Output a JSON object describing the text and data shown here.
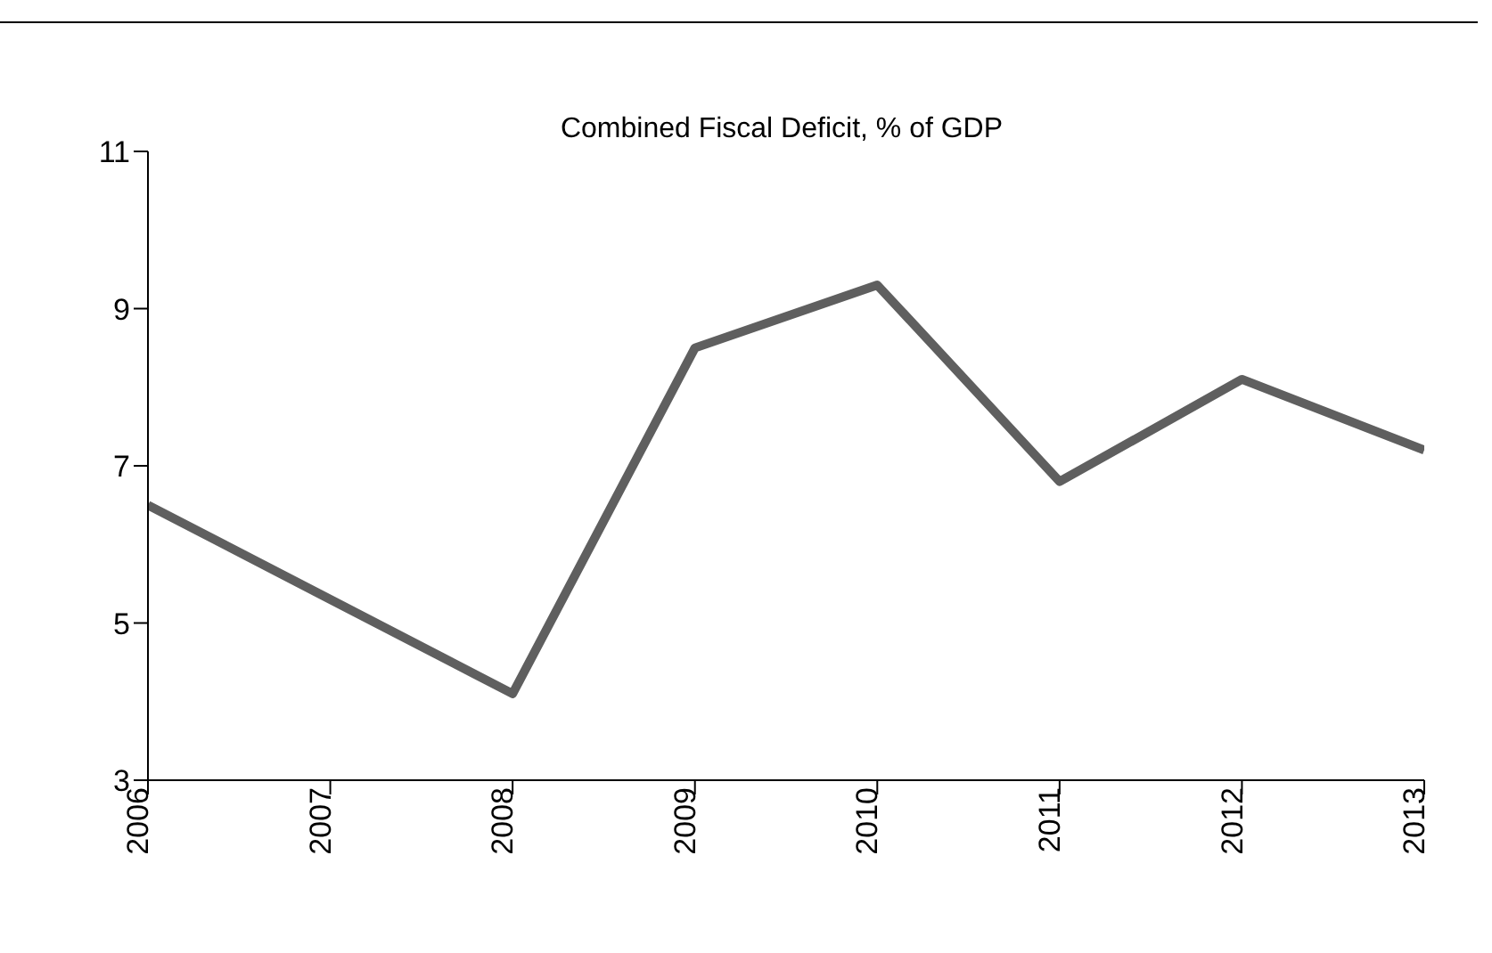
{
  "chart_data": {
    "type": "line",
    "title": "Combined Fiscal Deficit, % of GDP",
    "categories": [
      "2006",
      "2007",
      "2008",
      "2009",
      "2010",
      "2011",
      "2012",
      "2013"
    ],
    "series": [
      {
        "color": "#5f5f5f",
        "values": [
          6.5,
          5.3,
          4.1,
          8.5,
          9.3,
          6.8,
          8.1,
          7.2
        ]
      }
    ],
    "ylim": [
      3,
      11
    ],
    "yticks": [
      3,
      5,
      7,
      9,
      11
    ],
    "grid": false,
    "legend": false,
    "marker": "none",
    "line_style": "solid"
  }
}
